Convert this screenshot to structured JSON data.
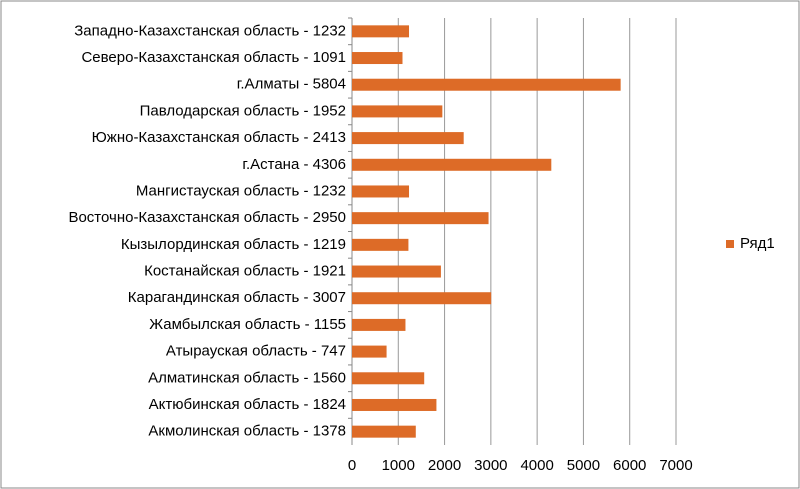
{
  "chart_data": {
    "type": "bar",
    "orientation": "horizontal",
    "categories": [
      "Западно-Казахстанская область - 1232",
      "Северо-Казахстанская область - 1091",
      "г.Алматы - 5804",
      "Павлодарская область  - 1952",
      "Южно-Казахстанская область - 2413",
      "г.Астана - 4306",
      "Мангистауская область - 1232",
      "Восточно-Казахстанская область - 2950",
      "Кызылординская область - 1219",
      "Костанайская область  - 1921",
      "Карагандинская область - 3007",
      "Жамбылская область - 1155",
      "Атырауская область - 747",
      "Алматинская область - 1560",
      "Актюбинская область - 1824",
      "Акмолинская область -  1378"
    ],
    "series": [
      {
        "name": "Ряд1",
        "color": "#dd6b27",
        "values": [
          1232,
          1091,
          5804,
          1952,
          2413,
          4306,
          1232,
          2950,
          1219,
          1921,
          3007,
          1155,
          747,
          1560,
          1824,
          1378
        ]
      }
    ],
    "xlim": [
      0,
      7000
    ],
    "xticks": [
      0,
      1000,
      2000,
      3000,
      4000,
      5000,
      6000,
      7000
    ],
    "grid": true,
    "legend": "right"
  }
}
